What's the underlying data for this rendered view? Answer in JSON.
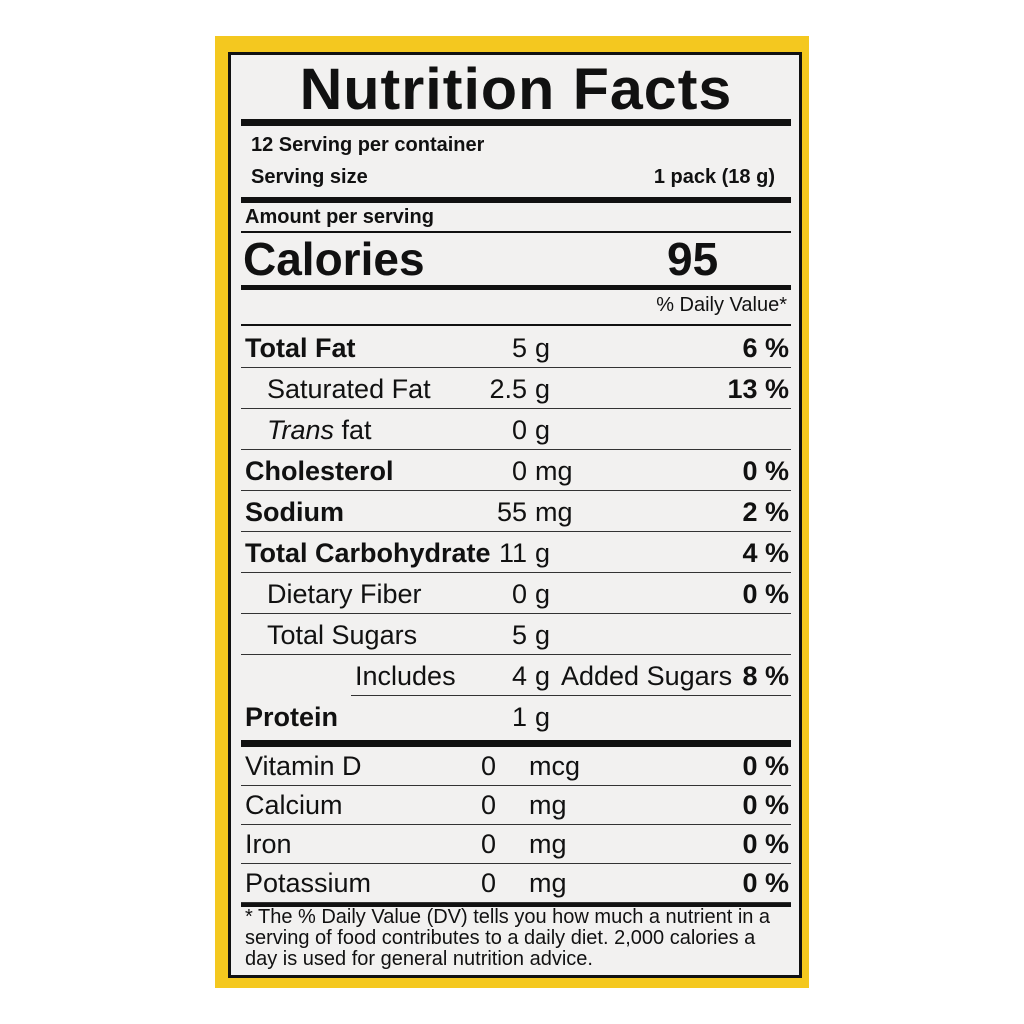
{
  "title": "Nutrition Facts",
  "servings_per_container": "12 Serving per container",
  "serving_size_label": "Serving size",
  "serving_size_value": "1 pack (18 g)",
  "amount_per_serving": "Amount per serving",
  "calories_label": "Calories",
  "calories_value": "95",
  "daily_value_header": "% Daily Value*",
  "nutrients": [
    {
      "name": "Total Fat",
      "num": "5",
      "unit": "g",
      "dv": "6 %"
    },
    {
      "name": "Saturated Fat",
      "num": "2.5",
      "unit": "g",
      "dv": "13 %"
    },
    {
      "name_italic": "Trans",
      "name_rest": " fat",
      "num": "0",
      "unit": "g",
      "dv": ""
    },
    {
      "name": "Cholesterol",
      "num": "0",
      "unit": "mg",
      "dv": "0 %"
    },
    {
      "name": "Sodium",
      "num": "55",
      "unit": "mg",
      "dv": "2 %"
    },
    {
      "name": "Total Carbohydrate",
      "num": "11",
      "unit": "g",
      "dv": "4 %"
    },
    {
      "name": "Dietary Fiber",
      "num": "0",
      "unit": "g",
      "dv": "0 %"
    },
    {
      "name": "Total Sugars",
      "num": "5",
      "unit": "g",
      "dv": ""
    },
    {
      "name": "Includes",
      "num": "4",
      "unit": "g",
      "suffix": "Added Sugars",
      "dv": "8 %"
    },
    {
      "name": "Protein",
      "num": "1",
      "unit": "g",
      "dv": ""
    }
  ],
  "vitamins": [
    {
      "name": "Vitamin D",
      "num": "0",
      "unit": "mcg",
      "dv": "0 %"
    },
    {
      "name": "Calcium",
      "num": "0",
      "unit": "mg",
      "dv": "0 %"
    },
    {
      "name": "Iron",
      "num": "0",
      "unit": "mg",
      "dv": "0 %"
    },
    {
      "name": "Potassium",
      "num": "0",
      "unit": "mg",
      "dv": "0 %"
    }
  ],
  "footnote": "* The % Daily Value (DV) tells you how much a nutrient in a serving of food contributes to a daily diet. 2,000 calories a day is used for general nutrition advice."
}
